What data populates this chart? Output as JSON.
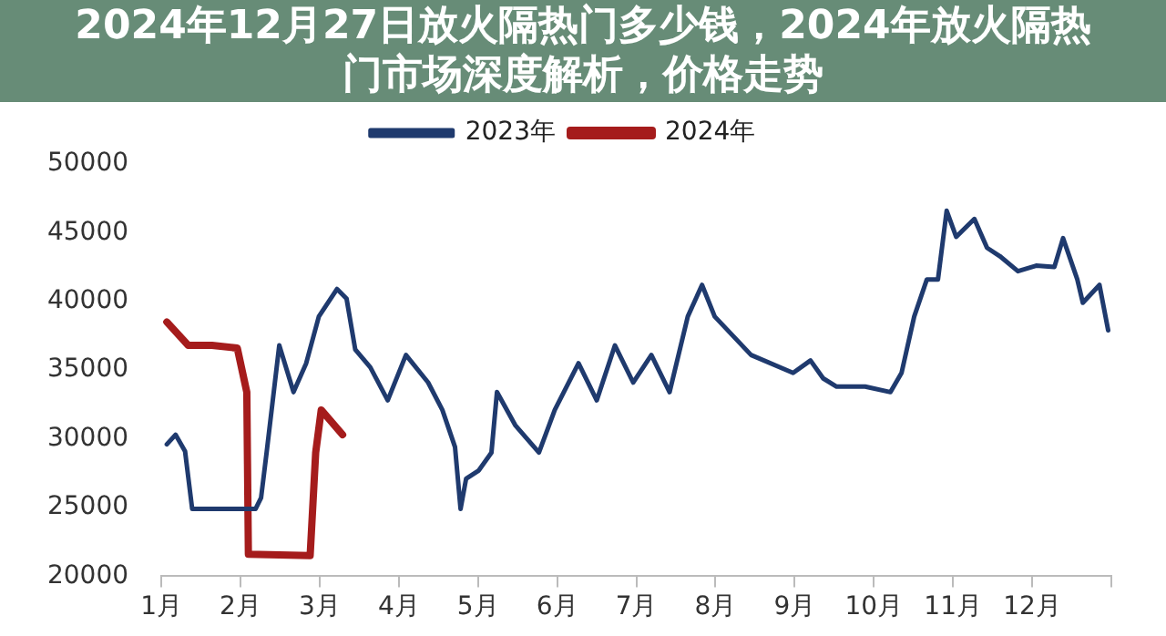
{
  "chart_data": {
    "type": "line",
    "title": "2024年12月27日放火隔热门多少钱，2024年放火隔热门市场深度解析，价格走势",
    "xlim": [
      1,
      13
    ],
    "xticks": [
      {
        "value": 1,
        "label": "1月"
      },
      {
        "value": 2,
        "label": "2月"
      },
      {
        "value": 3,
        "label": "3月"
      },
      {
        "value": 4,
        "label": "4月"
      },
      {
        "value": 5,
        "label": "5月"
      },
      {
        "value": 6,
        "label": "6月"
      },
      {
        "value": 7,
        "label": "7月"
      },
      {
        "value": 8,
        "label": "8月"
      },
      {
        "value": 9,
        "label": "9月"
      },
      {
        "value": 10,
        "label": "10月"
      },
      {
        "value": 11,
        "label": "11月"
      },
      {
        "value": 12,
        "label": "12月"
      },
      {
        "value": 13,
        "label": null
      }
    ],
    "ylim": [
      20000,
      50000
    ],
    "yticks": [
      20000,
      25000,
      30000,
      35000,
      40000,
      45000,
      50000
    ],
    "grid": false,
    "legend": "top",
    "marker": "none",
    "line_style": "solid",
    "series": [
      {
        "name": "2023年",
        "color": "#1f3a6e",
        "x": [
          1.07,
          1.18,
          1.3,
          1.39,
          2.19,
          2.26,
          2.33,
          2.49,
          2.67,
          2.83,
          2.99,
          3.22,
          3.34,
          3.45,
          3.64,
          3.86,
          4.09,
          4.37,
          4.55,
          4.71,
          4.78,
          4.85,
          5.01,
          5.17,
          5.24,
          5.47,
          5.77,
          5.97,
          6.27,
          6.5,
          6.73,
          6.96,
          7.19,
          7.42,
          7.65,
          7.83,
          7.99,
          8.45,
          8.98,
          9.2,
          9.36,
          9.53,
          9.89,
          10.21,
          10.35,
          10.51,
          10.67,
          10.81,
          10.92,
          11.04,
          11.27,
          11.43,
          11.59,
          11.82,
          12.05,
          12.28,
          12.39,
          12.57,
          12.64,
          12.85,
          12.96
        ],
        "values": [
          29600,
          30300,
          29100,
          24900,
          24900,
          25700,
          29000,
          36800,
          33400,
          35500,
          38900,
          40900,
          40200,
          36500,
          35200,
          32800,
          36100,
          34100,
          32100,
          29400,
          24900,
          27100,
          27700,
          29000,
          33400,
          31000,
          29000,
          32100,
          35500,
          32800,
          36800,
          34100,
          36100,
          33400,
          38900,
          41200,
          38900,
          36100,
          34800,
          35700,
          34400,
          33800,
          33800,
          33400,
          34800,
          38900,
          41600,
          41600,
          46600,
          44700,
          46000,
          43900,
          43300,
          42200,
          42600,
          42500,
          44600,
          41600,
          39900,
          41200,
          37900
        ]
      },
      {
        "name": "2024年",
        "color": "#a51c1c",
        "x": [
          1.07,
          1.34,
          1.64,
          1.96,
          2.08,
          2.1,
          2.88,
          2.95,
          3.02,
          3.29
        ],
        "values": [
          38500,
          36800,
          36800,
          36600,
          33400,
          21600,
          21500,
          29000,
          32100,
          30300
        ]
      }
    ]
  }
}
